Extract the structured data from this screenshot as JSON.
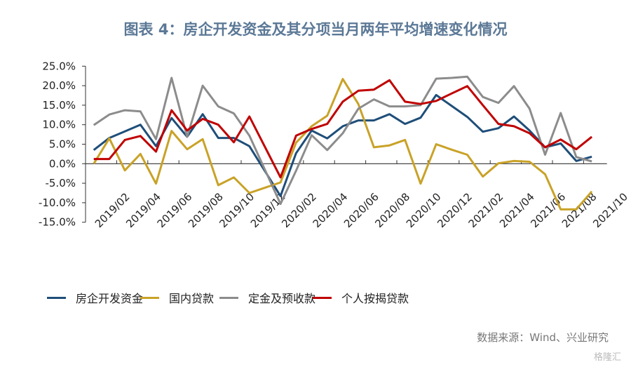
{
  "chart_data": {
    "type": "line",
    "title": "图表 4：房企开发资金及其分项当月两年平均增速变化情况",
    "xlabel": "",
    "ylabel": "",
    "ylim": [
      -15,
      25
    ],
    "yticks": [
      "25.0%",
      "20.0%",
      "15.0%",
      "10.0%",
      "5.0%",
      "0.0%",
      "-5.0%",
      "-10.0%",
      "-15.0%"
    ],
    "ytick_values": [
      25,
      20,
      15,
      10,
      5,
      0,
      -5,
      -10,
      -15
    ],
    "categories": [
      "2019/02",
      "2019/03",
      "2019/04",
      "2019/05",
      "2019/06",
      "2019/07",
      "2019/08",
      "2019/09",
      "2019/10",
      "2019/11",
      "2019/12",
      "2020/01",
      "2020/02",
      "2020/03",
      "2020/04",
      "2020/05",
      "2020/06",
      "2020/07",
      "2020/08",
      "2020/09",
      "2020/10",
      "2020/11",
      "2020/12",
      "2021/01",
      "2021/02",
      "2021/03",
      "2021/04",
      "2021/05",
      "2021/06",
      "2021/07",
      "2021/08",
      "2021/09",
      "2021/10"
    ],
    "xtick_labels": [
      "2019/02",
      "2019/04",
      "2019/06",
      "2019/08",
      "2019/10",
      "2019/12",
      "2020/02",
      "2020/04",
      "2020/06",
      "2020/08",
      "2020/10",
      "2020/12",
      "2021/02",
      "2021/04",
      "2021/06",
      "2021/08",
      "2021/10"
    ],
    "legend_position": "bottom",
    "grid": false,
    "series": [
      {
        "name": "房企开发资金",
        "color": "#1f4e79",
        "values": [
          3.5,
          6.6,
          8.3,
          10,
          4.5,
          11.7,
          6.9,
          12.7,
          6.6,
          6.6,
          4.5,
          null,
          -8.3,
          2.7,
          8.5,
          6.5,
          9.6,
          11.1,
          11.1,
          12.7,
          10.2,
          11.8,
          17.6,
          14.8,
          12,
          8.2,
          9.1,
          12.1,
          8.5,
          4.2,
          5.2,
          0.7,
          1.8
        ]
      },
      {
        "name": "国内贷款",
        "color": "#c9a227",
        "values": [
          0,
          6.5,
          -1.7,
          2.5,
          -5.1,
          8.4,
          3.7,
          6.3,
          -5.5,
          -3.5,
          -7.5,
          null,
          -4.8,
          5.4,
          9.6,
          12.3,
          21.7,
          15.3,
          4.2,
          4.7,
          6.1,
          -5.1,
          5,
          3.6,
          2.3,
          -3.3,
          0.1,
          0.7,
          0.5,
          -2.7,
          -11.7,
          -11.7,
          -7.1
        ]
      },
      {
        "name": "定金及预收款",
        "color": "#8c8c8c",
        "values": [
          9.9,
          12.6,
          13.7,
          13.4,
          6.3,
          22,
          6.9,
          20,
          14.7,
          12.9,
          7.2,
          null,
          -10.3,
          -1.8,
          7.3,
          3.5,
          7.8,
          14.1,
          16.5,
          14.7,
          14.7,
          15,
          21.8,
          22,
          22.3,
          17.1,
          15.6,
          19.9,
          14.1,
          2.3,
          13,
          1.7,
          0.6
        ]
      },
      {
        "name": "个人按揭贷款",
        "color": "#c00000",
        "values": [
          1.2,
          1.2,
          6.1,
          7.1,
          3.1,
          13.7,
          8.5,
          11.5,
          10,
          5.5,
          12.1,
          null,
          -3.5,
          7.2,
          8.9,
          10.2,
          15.9,
          18.7,
          19,
          21.4,
          15.9,
          15.3,
          16.1,
          18,
          19.9,
          15,
          10.2,
          9.6,
          7.8,
          4.2,
          6.2,
          3.7,
          6.9
        ]
      }
    ]
  },
  "footer": {
    "source": "数据来源：Wind、兴业研究",
    "watermark": "格隆汇"
  }
}
